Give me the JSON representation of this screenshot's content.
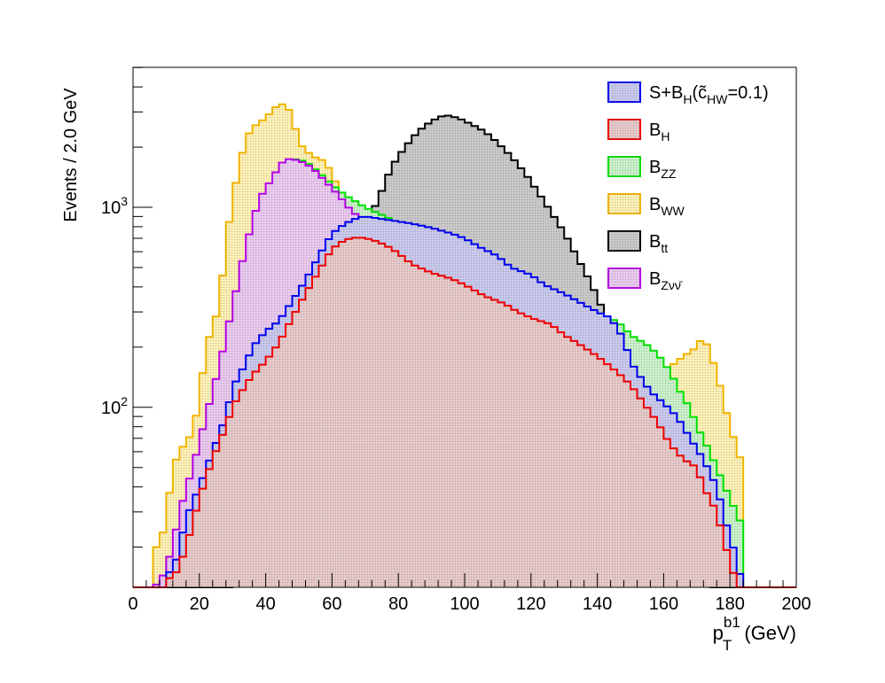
{
  "chart_data": {
    "type": "histogram",
    "xlabel_main": "p",
    "xlabel_sub": "T",
    "xlabel_sup": "b1",
    "xlabel_unit": "(GeV)",
    "ylabel": "Events / 2.0 GeV",
    "xlim": [
      0,
      200
    ],
    "ylim_log10": [
      1.1,
      3.7
    ],
    "y_scale": "log",
    "bin_width": 2,
    "x_ticks": [
      "0",
      "20",
      "40",
      "60",
      "80",
      "100",
      "120",
      "140",
      "160",
      "180",
      "200"
    ],
    "y_ticks": [
      {
        "value": 1000,
        "base": "10",
        "exp": "3"
      },
      {
        "value": 100,
        "base": "10",
        "exp": "2"
      }
    ],
    "legend": {
      "position": "top-right",
      "entries": [
        {
          "key": "sig",
          "base": "S+B",
          "sub": "H",
          "suffix_open": "(",
          "c": "c̃",
          "c_sub": "HW",
          "suffix_close": "=0.1)"
        },
        {
          "key": "bh",
          "base": "B",
          "sub": "H"
        },
        {
          "key": "bzz",
          "base": "B",
          "sub": "ZZ"
        },
        {
          "key": "bww",
          "base": "B",
          "sub": "WW"
        },
        {
          "key": "btt",
          "base": "B",
          "sub": "tt"
        },
        {
          "key": "bznn",
          "base": "B",
          "sub": "Zνν̄"
        }
      ]
    },
    "colors": {
      "sig": "#0000ee",
      "bh": "#ee0000",
      "bzz": "#00e000",
      "bww": "#f0b400",
      "btt": "#000000",
      "bznn": "#b400e6"
    },
    "fills": {
      "sig": "#c8c8ec",
      "bh": "#e6c8c8",
      "bzz": "#c8f0c8",
      "bww": "#fff0b4",
      "btt": "#c8c8c8",
      "bznn": "#e8c8ee"
    },
    "series": [
      {
        "key": "sig",
        "points": [
          [
            0,
            0
          ],
          [
            10,
            0
          ],
          [
            12,
            15
          ],
          [
            14,
            20
          ],
          [
            16,
            28
          ],
          [
            20,
            40
          ],
          [
            24,
            60
          ],
          [
            28,
            90
          ],
          [
            30,
            125
          ],
          [
            32,
            145
          ],
          [
            34,
            165
          ],
          [
            36,
            200
          ],
          [
            40,
            240
          ],
          [
            44,
            270
          ],
          [
            48,
            340
          ],
          [
            52,
            430
          ],
          [
            56,
            570
          ],
          [
            60,
            740
          ],
          [
            64,
            830
          ],
          [
            68,
            890
          ],
          [
            70,
            900
          ],
          [
            74,
            880
          ],
          [
            78,
            860
          ],
          [
            84,
            830
          ],
          [
            90,
            790
          ],
          [
            96,
            740
          ],
          [
            100,
            700
          ],
          [
            104,
            640
          ],
          [
            110,
            570
          ],
          [
            114,
            500
          ],
          [
            120,
            460
          ],
          [
            124,
            410
          ],
          [
            130,
            370
          ],
          [
            134,
            340
          ],
          [
            140,
            300
          ],
          [
            144,
            280
          ],
          [
            148,
            220
          ],
          [
            150,
            170
          ],
          [
            152,
            150
          ],
          [
            156,
            120
          ],
          [
            160,
            105
          ],
          [
            164,
            90
          ],
          [
            168,
            70
          ],
          [
            172,
            55
          ],
          [
            176,
            40
          ],
          [
            178,
            30
          ],
          [
            180,
            22
          ],
          [
            182,
            18
          ],
          [
            184,
            12
          ],
          [
            186,
            0
          ],
          [
            200,
            0
          ]
        ]
      },
      {
        "key": "bh",
        "points": [
          [
            0,
            0
          ],
          [
            10,
            0
          ],
          [
            12,
            14
          ],
          [
            14,
            16
          ],
          [
            16,
            20
          ],
          [
            20,
            35
          ],
          [
            24,
            55
          ],
          [
            28,
            80
          ],
          [
            30,
            100
          ],
          [
            32,
            115
          ],
          [
            36,
            145
          ],
          [
            40,
            170
          ],
          [
            44,
            210
          ],
          [
            48,
            280
          ],
          [
            52,
            370
          ],
          [
            56,
            480
          ],
          [
            60,
            620
          ],
          [
            64,
            690
          ],
          [
            68,
            710
          ],
          [
            72,
            690
          ],
          [
            76,
            650
          ],
          [
            80,
            590
          ],
          [
            84,
            520
          ],
          [
            90,
            470
          ],
          [
            96,
            440
          ],
          [
            100,
            410
          ],
          [
            106,
            360
          ],
          [
            112,
            330
          ],
          [
            116,
            300
          ],
          [
            120,
            280
          ],
          [
            126,
            260
          ],
          [
            130,
            230
          ],
          [
            134,
            210
          ],
          [
            140,
            180
          ],
          [
            146,
            150
          ],
          [
            150,
            130
          ],
          [
            154,
            105
          ],
          [
            158,
            85
          ],
          [
            162,
            65
          ],
          [
            166,
            55
          ],
          [
            170,
            50
          ],
          [
            172,
            40
          ],
          [
            176,
            30
          ],
          [
            178,
            22
          ],
          [
            180,
            17
          ],
          [
            182,
            13
          ],
          [
            184,
            0
          ],
          [
            200,
            0
          ]
        ]
      },
      {
        "key": "bzz",
        "points": [
          [
            0,
            0
          ],
          [
            10,
            0
          ],
          [
            12,
            17
          ],
          [
            14,
            22
          ],
          [
            16,
            30
          ],
          [
            20,
            55
          ],
          [
            24,
            80
          ],
          [
            28,
            130
          ],
          [
            32,
            210
          ],
          [
            36,
            320
          ],
          [
            40,
            550
          ],
          [
            44,
            880
          ],
          [
            46,
            1500
          ],
          [
            48,
            1750
          ],
          [
            52,
            1700
          ],
          [
            56,
            1500
          ],
          [
            60,
            1300
          ],
          [
            64,
            1150
          ],
          [
            70,
            1000
          ],
          [
            76,
            900
          ],
          [
            80,
            840
          ],
          [
            86,
            780
          ],
          [
            90,
            730
          ],
          [
            96,
            690
          ],
          [
            100,
            640
          ],
          [
            106,
            580
          ],
          [
            110,
            530
          ],
          [
            116,
            470
          ],
          [
            120,
            410
          ],
          [
            126,
            370
          ],
          [
            130,
            340
          ],
          [
            136,
            310
          ],
          [
            140,
            290
          ],
          [
            146,
            270
          ],
          [
            148,
            250
          ],
          [
            150,
            230
          ],
          [
            152,
            220
          ],
          [
            154,
            210
          ],
          [
            156,
            200
          ],
          [
            160,
            170
          ],
          [
            164,
            130
          ],
          [
            166,
            110
          ],
          [
            168,
            100
          ],
          [
            170,
            80
          ],
          [
            172,
            70
          ],
          [
            176,
            50
          ],
          [
            180,
            35
          ],
          [
            184,
            25
          ],
          [
            186,
            0
          ],
          [
            200,
            0
          ]
        ]
      },
      {
        "key": "bww",
        "points": [
          [
            0,
            0
          ],
          [
            6,
            0
          ],
          [
            8,
            20
          ],
          [
            10,
            28
          ],
          [
            12,
            50
          ],
          [
            14,
            60
          ],
          [
            18,
            75
          ],
          [
            20,
            110
          ],
          [
            22,
            200
          ],
          [
            26,
            320
          ],
          [
            28,
            650
          ],
          [
            30,
            1100
          ],
          [
            32,
            1600
          ],
          [
            34,
            2200
          ],
          [
            36,
            2500
          ],
          [
            40,
            2800
          ],
          [
            44,
            3300
          ],
          [
            46,
            3250
          ],
          [
            48,
            2900
          ],
          [
            50,
            2100
          ],
          [
            54,
            1800
          ],
          [
            58,
            1700
          ],
          [
            62,
            1250
          ],
          [
            66,
            850
          ],
          [
            70,
            700
          ],
          [
            76,
            600
          ],
          [
            80,
            520
          ],
          [
            84,
            490
          ],
          [
            90,
            350
          ],
          [
            94,
            400
          ],
          [
            98,
            250
          ],
          [
            104,
            220
          ],
          [
            108,
            250
          ],
          [
            112,
            210
          ],
          [
            116,
            170
          ],
          [
            120,
            220
          ],
          [
            124,
            150
          ],
          [
            130,
            130
          ],
          [
            134,
            70
          ],
          [
            136,
            140
          ],
          [
            140,
            110
          ],
          [
            142,
            80
          ],
          [
            144,
            160
          ],
          [
            146,
            130
          ],
          [
            150,
            90
          ],
          [
            154,
            100
          ],
          [
            158,
            110
          ],
          [
            162,
            160
          ],
          [
            166,
            180
          ],
          [
            170,
            200
          ],
          [
            172,
            230
          ],
          [
            176,
            150
          ],
          [
            180,
            80
          ],
          [
            184,
            50
          ],
          [
            186,
            0
          ],
          [
            200,
            0
          ]
        ]
      },
      {
        "key": "btt",
        "points": [
          [
            0,
            0
          ],
          [
            30,
            0
          ],
          [
            32,
            30
          ],
          [
            34,
            40
          ],
          [
            38,
            55
          ],
          [
            42,
            70
          ],
          [
            46,
            100
          ],
          [
            50,
            140
          ],
          [
            54,
            190
          ],
          [
            58,
            260
          ],
          [
            62,
            370
          ],
          [
            66,
            550
          ],
          [
            70,
            800
          ],
          [
            74,
            1100
          ],
          [
            78,
            1600
          ],
          [
            82,
            2000
          ],
          [
            86,
            2400
          ],
          [
            90,
            2700
          ],
          [
            94,
            2900
          ],
          [
            98,
            2800
          ],
          [
            102,
            2600
          ],
          [
            106,
            2400
          ],
          [
            110,
            2100
          ],
          [
            114,
            1800
          ],
          [
            118,
            1500
          ],
          [
            122,
            1200
          ],
          [
            126,
            950
          ],
          [
            130,
            750
          ],
          [
            134,
            560
          ],
          [
            138,
            420
          ],
          [
            142,
            300
          ],
          [
            146,
            200
          ],
          [
            150,
            140
          ],
          [
            154,
            85
          ],
          [
            158,
            55
          ],
          [
            162,
            35
          ],
          [
            166,
            22
          ],
          [
            170,
            15
          ],
          [
            174,
            12
          ],
          [
            178,
            0
          ],
          [
            200,
            0
          ]
        ]
      },
      {
        "key": "bznn",
        "points": [
          [
            0,
            0
          ],
          [
            6,
            0
          ],
          [
            8,
            13
          ],
          [
            10,
            16
          ],
          [
            12,
            20
          ],
          [
            14,
            30
          ],
          [
            18,
            50
          ],
          [
            22,
            90
          ],
          [
            26,
            160
          ],
          [
            30,
            320
          ],
          [
            34,
            640
          ],
          [
            38,
            1100
          ],
          [
            42,
            1400
          ],
          [
            44,
            1600
          ],
          [
            46,
            1750
          ],
          [
            50,
            1720
          ],
          [
            54,
            1580
          ],
          [
            58,
            1350
          ],
          [
            62,
            1150
          ],
          [
            66,
            950
          ],
          [
            70,
            860
          ],
          [
            76,
            780
          ],
          [
            80,
            700
          ],
          [
            84,
            630
          ],
          [
            88,
            570
          ],
          [
            92,
            490
          ],
          [
            96,
            440
          ],
          [
            100,
            410
          ],
          [
            106,
            370
          ],
          [
            110,
            320
          ],
          [
            116,
            290
          ],
          [
            120,
            270
          ],
          [
            126,
            250
          ],
          [
            130,
            200
          ],
          [
            134,
            160
          ],
          [
            140,
            140
          ],
          [
            146,
            120
          ],
          [
            150,
            90
          ],
          [
            154,
            75
          ],
          [
            158,
            70
          ],
          [
            162,
            60
          ],
          [
            166,
            45
          ],
          [
            170,
            35
          ],
          [
            174,
            25
          ],
          [
            178,
            18
          ],
          [
            180,
            15
          ],
          [
            182,
            12
          ],
          [
            184,
            0
          ],
          [
            200,
            0
          ]
        ]
      }
    ]
  }
}
